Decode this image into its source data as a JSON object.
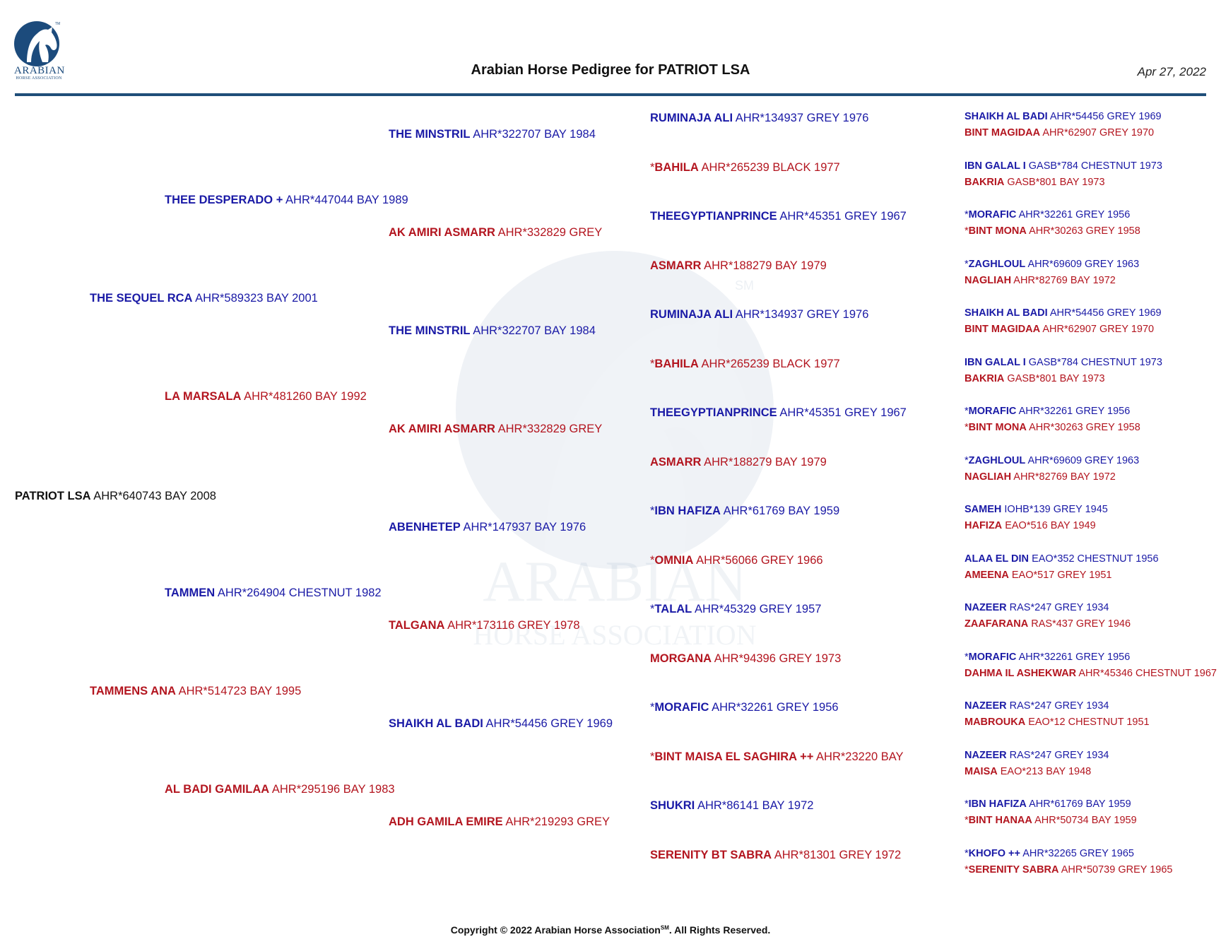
{
  "header": {
    "title": "Arabian Horse Pedigree for PATRIOT LSA",
    "date": "Apr 27, 2022",
    "logo_text_line1": "ARABIAN",
    "logo_text_line2": "HORSE ASSOCIATION",
    "logo_mark": "TM"
  },
  "watermark": {
    "line1": "ARABIAN",
    "line2": "HORSE ASSOCIATION",
    "mark": "SM"
  },
  "subject": {
    "name": "PATRIOT LSA",
    "info": "AHR*640743 BAY 2008"
  },
  "gen1": [
    {
      "name": "THE SEQUEL RCA",
      "info": "AHR*589323 BAY 2001"
    },
    {
      "name": "TAMMENS ANA",
      "info": "AHR*514723 BAY 1995"
    }
  ],
  "gen2": [
    {
      "name": "THEE DESPERADO +",
      "info": "AHR*447044 BAY 1989"
    },
    {
      "name": "LA MARSALA",
      "info": "AHR*481260 BAY 1992"
    },
    {
      "name": "TAMMEN",
      "info": "AHR*264904 CHESTNUT 1982"
    },
    {
      "name": "AL BADI GAMILAA",
      "info": "AHR*295196 BAY 1983"
    }
  ],
  "gen3": [
    {
      "name": "THE MINSTRIL",
      "info": "AHR*322707 BAY 1984"
    },
    {
      "name": "AK AMIRI ASMARR",
      "info": "AHR*332829 GREY"
    },
    {
      "name": "THE MINSTRIL",
      "info": "AHR*322707 BAY 1984"
    },
    {
      "name": "AK AMIRI ASMARR",
      "info": "AHR*332829 GREY"
    },
    {
      "name": "ABENHETEP",
      "info": "AHR*147937 BAY 1976"
    },
    {
      "name": "TALGANA",
      "info": "AHR*173116 GREY 1978"
    },
    {
      "name": "SHAIKH AL BADI",
      "info": "AHR*54456 GREY 1969"
    },
    {
      "name": "ADH GAMILA EMIRE",
      "info": "AHR*219293 GREY"
    }
  ],
  "gen4": [
    {
      "prefix": "",
      "name": "RUMINAJA ALI",
      "info": "AHR*134937 GREY 1976"
    },
    {
      "prefix": "*",
      "name": "BAHILA",
      "info": "AHR*265239 BLACK 1977"
    },
    {
      "prefix": "",
      "name": "THEEGYPTIANPRINCE",
      "info": "AHR*45351 GREY 1967"
    },
    {
      "prefix": "",
      "name": "ASMARR",
      "info": "AHR*188279 BAY 1979"
    },
    {
      "prefix": "",
      "name": "RUMINAJA ALI",
      "info": "AHR*134937 GREY 1976"
    },
    {
      "prefix": "*",
      "name": "BAHILA",
      "info": "AHR*265239 BLACK 1977"
    },
    {
      "prefix": "",
      "name": "THEEGYPTIANPRINCE",
      "info": "AHR*45351 GREY 1967"
    },
    {
      "prefix": "",
      "name": "ASMARR",
      "info": "AHR*188279 BAY 1979"
    },
    {
      "prefix": "*",
      "name": "IBN HAFIZA",
      "info": "AHR*61769 BAY 1959"
    },
    {
      "prefix": "*",
      "name": "OMNIA",
      "info": "AHR*56066 GREY 1966"
    },
    {
      "prefix": "*",
      "name": "TALAL",
      "info": "AHR*45329 GREY 1957"
    },
    {
      "prefix": "",
      "name": "MORGANA",
      "info": "AHR*94396 GREY 1973"
    },
    {
      "prefix": "*",
      "name": "MORAFIC",
      "info": "AHR*32261 GREY 1956"
    },
    {
      "prefix": "*",
      "name": "BINT MAISA EL SAGHIRA ++",
      "info": "AHR*23220 BAY"
    },
    {
      "prefix": "",
      "name": "SHUKRI",
      "info": "AHR*86141 BAY 1972"
    },
    {
      "prefix": "",
      "name": "SERENITY BT SABRA",
      "info": "AHR*81301 GREY 1972"
    }
  ],
  "gen5": [
    {
      "prefix": "",
      "name": "SHAIKH AL BADI",
      "info": "AHR*54456 GREY 1969"
    },
    {
      "prefix": "",
      "name": "BINT MAGIDAA",
      "info": "AHR*62907 GREY 1970"
    },
    {
      "prefix": "",
      "name": "IBN GALAL I",
      "info": "GASB*784 CHESTNUT 1973"
    },
    {
      "prefix": "",
      "name": "BAKRIA",
      "info": "GASB*801 BAY 1973"
    },
    {
      "prefix": "*",
      "name": "MORAFIC",
      "info": "AHR*32261 GREY 1956"
    },
    {
      "prefix": "*",
      "name": "BINT MONA",
      "info": "AHR*30263 GREY 1958"
    },
    {
      "prefix": "*",
      "name": "ZAGHLOUL",
      "info": "AHR*69609 GREY 1963"
    },
    {
      "prefix": "",
      "name": "NAGLIAH",
      "info": "AHR*82769 BAY 1972"
    },
    {
      "prefix": "",
      "name": "SHAIKH AL BADI",
      "info": "AHR*54456 GREY 1969"
    },
    {
      "prefix": "",
      "name": "BINT MAGIDAA",
      "info": "AHR*62907 GREY 1970"
    },
    {
      "prefix": "",
      "name": "IBN GALAL I",
      "info": "GASB*784 CHESTNUT 1973"
    },
    {
      "prefix": "",
      "name": "BAKRIA",
      "info": "GASB*801 BAY 1973"
    },
    {
      "prefix": "*",
      "name": "MORAFIC",
      "info": "AHR*32261 GREY 1956"
    },
    {
      "prefix": "*",
      "name": "BINT MONA",
      "info": "AHR*30263 GREY 1958"
    },
    {
      "prefix": "*",
      "name": "ZAGHLOUL",
      "info": "AHR*69609 GREY 1963"
    },
    {
      "prefix": "",
      "name": "NAGLIAH",
      "info": "AHR*82769 BAY 1972"
    },
    {
      "prefix": "",
      "name": "SAMEH",
      "info": "IOHB*139 GREY 1945"
    },
    {
      "prefix": "",
      "name": "HAFIZA",
      "info": "EAO*516 BAY 1949"
    },
    {
      "prefix": "",
      "name": "ALAA EL DIN",
      "info": "EAO*352 CHESTNUT 1956"
    },
    {
      "prefix": "",
      "name": "AMEENA",
      "info": "EAO*517 GREY 1951"
    },
    {
      "prefix": "",
      "name": "NAZEER",
      "info": "RAS*247 GREY 1934"
    },
    {
      "prefix": "",
      "name": "ZAAFARANA",
      "info": "RAS*437 GREY 1946"
    },
    {
      "prefix": "*",
      "name": "MORAFIC",
      "info": "AHR*32261 GREY 1956"
    },
    {
      "prefix": "",
      "name": "DAHMA IL ASHEKWAR",
      "info": "AHR*45346 CHESTNUT 1967"
    },
    {
      "prefix": "",
      "name": "NAZEER",
      "info": "RAS*247 GREY 1934"
    },
    {
      "prefix": "",
      "name": "MABROUKA",
      "info": "EAO*12 CHESTNUT 1951"
    },
    {
      "prefix": "",
      "name": "NAZEER",
      "info": "RAS*247 GREY 1934"
    },
    {
      "prefix": "",
      "name": "MAISA",
      "info": "EAO*213 BAY 1948"
    },
    {
      "prefix": "*",
      "name": "IBN HAFIZA",
      "info": "AHR*61769 BAY 1959"
    },
    {
      "prefix": "*",
      "name": "BINT HANAA",
      "info": "AHR*50734 BAY 1959"
    },
    {
      "prefix": "*",
      "name": "KHOFO ++",
      "info": "AHR*32265 GREY 1965"
    },
    {
      "prefix": "*",
      "name": "SERENITY SABRA",
      "info": "AHR*50739 GREY 1965"
    }
  ],
  "footer": {
    "prefix": "Copyright © 2022 Arabian Horse Association",
    "mark": "SM",
    "suffix": ".  All Rights Reserved."
  }
}
